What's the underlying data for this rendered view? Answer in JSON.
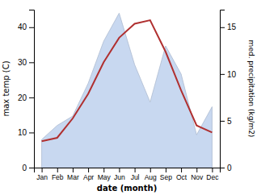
{
  "chart_data": {
    "type": "line",
    "xlabel": "date (month)",
    "ylabel": "max temp (C)",
    "y2label": "med. precipitation (kg/m2)",
    "categories": [
      "Jan",
      "Feb",
      "Mar",
      "Apr",
      "May",
      "Jun",
      "Jul",
      "Aug",
      "Sep",
      "Oct",
      "Nov",
      "Dec"
    ],
    "series": [
      {
        "type": "area",
        "axis": "y2",
        "color": "#c8d8f0",
        "values": [
          3.0,
          4.5,
          5.5,
          9.0,
          13.5,
          16.5,
          11.0,
          7.0,
          13.0,
          10.0,
          3.5,
          6.5
        ]
      },
      {
        "type": "line",
        "color": "#b03030",
        "values": [
          7.5,
          8.5,
          14,
          21,
          30,
          37,
          41,
          42,
          33,
          22,
          12,
          10
        ]
      }
    ],
    "ylim": [
      0,
      45
    ],
    "yticks": [
      0,
      10,
      20,
      30,
      40
    ],
    "y2lim": [
      0,
      16.875
    ],
    "y2ticks": [
      0,
      5,
      10,
      15
    ],
    "grid": false
  }
}
